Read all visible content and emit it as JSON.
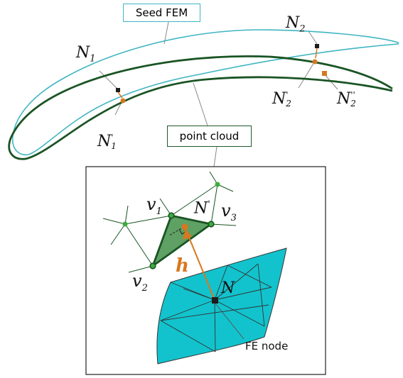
{
  "labels": {
    "seed_fem": "Seed FEM",
    "point_cloud": "point cloud",
    "fe_node": "FE node",
    "n1": "N",
    "n1_sub": "1",
    "n1p": "N",
    "n1p_sub": "1",
    "n1p_sup": "'",
    "n2": "N",
    "n2_sub": "2",
    "n2p": "N",
    "n2p_sub": "2",
    "n2p_sup": "'",
    "n2pp": "N",
    "n2pp_sub": "2",
    "n2pp_sup": "''",
    "v1": "v",
    "v1_sub": "1",
    "v2": "v",
    "v2_sub": "2",
    "v3": "v",
    "v3_sub": "3",
    "nprime": "N",
    "nprime_sup": "'",
    "n": "N",
    "h": "h"
  },
  "colors": {
    "seed_outline": "#3fb5c2",
    "cloud_outline": "#1a5424",
    "orange": "#d9771f",
    "node_black": "#1c1c1c",
    "mesh_fill": "#12c3cd",
    "triangle_fill": "#5fa064",
    "point_green": "#3cad3c"
  }
}
